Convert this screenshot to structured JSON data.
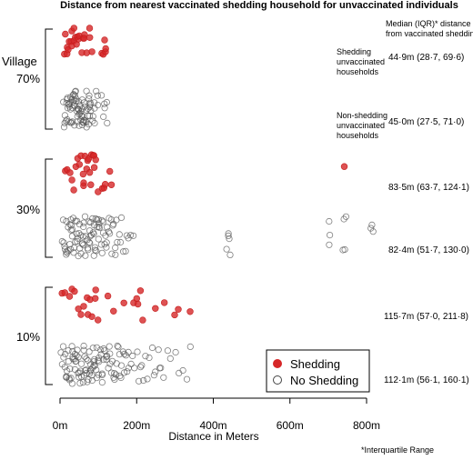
{
  "chart_data": {
    "type": "scatter",
    "title": "Distance from nearest vaccinated shedding household for unvaccinated individuals",
    "xlabel": "Distance in Meters",
    "xlim": [
      -10,
      830
    ],
    "xticks": [
      {
        "value": 0,
        "label": "0m"
      },
      {
        "value": 200,
        "label": "200m"
      },
      {
        "value": 400,
        "label": "400m"
      },
      {
        "value": 600,
        "label": "600m"
      },
      {
        "value": 800,
        "label": "800m"
      }
    ],
    "column_header": [
      "Median (IQR)* distance",
      "from vaccinated shedding"
    ],
    "footnote": "*Interquartile Range",
    "annotations": {
      "shedding": [
        "Shedding",
        "unvaccinated",
        "households"
      ],
      "non_shedding": [
        "Non-shedding",
        "unvaccinated",
        "households"
      ]
    },
    "group_axis_label": "Village",
    "legend": [
      {
        "label": "Shedding",
        "color": "#d62728",
        "filled": true
      },
      {
        "label": "No Shedding",
        "color": "#555555",
        "filled": false
      }
    ],
    "groups": [
      {
        "label": "70%",
        "shedding": {
          "median_iqr": "44·9m (28·7,  69·6)",
          "x": [
            12,
            15,
            18,
            20,
            22,
            25,
            28,
            30,
            32,
            35,
            38,
            40,
            42,
            45,
            48,
            50,
            55,
            60,
            62,
            65,
            70,
            75,
            78,
            85,
            110,
            112,
            115,
            118,
            120
          ]
        },
        "non_shedding": {
          "median_iqr": "45·0m (27·5,  71·0)",
          "x": [
            8,
            10,
            12,
            14,
            15,
            16,
            18,
            18,
            20,
            20,
            22,
            22,
            24,
            25,
            25,
            26,
            28,
            28,
            30,
            30,
            30,
            32,
            32,
            34,
            35,
            35,
            36,
            38,
            38,
            40,
            40,
            40,
            42,
            42,
            44,
            45,
            45,
            46,
            48,
            48,
            50,
            50,
            50,
            52,
            52,
            54,
            55,
            55,
            56,
            58,
            58,
            60,
            60,
            62,
            62,
            64,
            65,
            65,
            66,
            68,
            68,
            70,
            70,
            72,
            72,
            74,
            75,
            75,
            76,
            78,
            80,
            80,
            82,
            84,
            85,
            88,
            90,
            92,
            95,
            98,
            100,
            110,
            112,
            115,
            118,
            120,
            125
          ]
        }
      },
      {
        "label": "30%",
        "shedding": {
          "median_iqr": "83·5m (63·7, 124·1)",
          "x": [
            15,
            20,
            25,
            30,
            35,
            40,
            45,
            50,
            55,
            58,
            60,
            62,
            65,
            70,
            72,
            75,
            78,
            80,
            82,
            85,
            88,
            90,
            95,
            100,
            110,
            115,
            120,
            130,
            135,
            740
          ]
        },
        "non_shedding": {
          "median_iqr": "82·4m (51·7, 130·0)",
          "x": [
            5,
            8,
            10,
            12,
            14,
            15,
            16,
            18,
            20,
            20,
            22,
            24,
            25,
            26,
            28,
            30,
            30,
            32,
            34,
            35,
            36,
            38,
            40,
            40,
            42,
            44,
            45,
            46,
            48,
            50,
            50,
            52,
            54,
            55,
            56,
            58,
            60,
            60,
            62,
            64,
            65,
            66,
            68,
            70,
            70,
            72,
            74,
            75,
            76,
            78,
            80,
            80,
            82,
            84,
            85,
            86,
            88,
            90,
            90,
            92,
            94,
            95,
            96,
            98,
            100,
            100,
            102,
            104,
            105,
            108,
            110,
            110,
            112,
            115,
            118,
            120,
            120,
            122,
            125,
            128,
            130,
            130,
            132,
            135,
            138,
            140,
            142,
            145,
            148,
            150,
            155,
            158,
            160,
            165,
            170,
            175,
            180,
            185,
            190,
            435,
            437,
            440,
            440,
            442,
            700,
            702,
            705,
            740,
            742,
            745,
            748,
            810,
            812,
            815
          ]
        }
      },
      {
        "label": "10%",
        "shedding": {
          "median_iqr": "115·7m (57·0, 211·8)",
          "x": [
            5,
            15,
            25,
            30,
            40,
            50,
            55,
            60,
            70,
            75,
            80,
            85,
            90,
            95,
            100,
            125,
            140,
            165,
            190,
            200,
            205,
            210,
            215,
            250,
            270,
            300,
            310,
            340
          ]
        },
        "non_shedding": {
          "median_iqr": "112·1m (56·1, 160·1)",
          "x": [
            2,
            5,
            8,
            10,
            12,
            14,
            15,
            16,
            18,
            20,
            20,
            22,
            24,
            25,
            26,
            28,
            30,
            30,
            32,
            34,
            35,
            36,
            38,
            40,
            40,
            42,
            44,
            45,
            46,
            48,
            50,
            50,
            52,
            54,
            55,
            56,
            58,
            60,
            60,
            62,
            64,
            65,
            66,
            68,
            70,
            70,
            72,
            74,
            75,
            76,
            78,
            80,
            80,
            82,
            84,
            85,
            86,
            88,
            90,
            90,
            92,
            94,
            95,
            96,
            98,
            100,
            100,
            102,
            104,
            105,
            108,
            110,
            110,
            112,
            115,
            118,
            120,
            120,
            122,
            125,
            128,
            130,
            130,
            132,
            135,
            138,
            140,
            142,
            145,
            148,
            150,
            152,
            155,
            158,
            160,
            162,
            165,
            168,
            170,
            172,
            175,
            178,
            180,
            185,
            190,
            195,
            200,
            205,
            210,
            215,
            220,
            225,
            230,
            235,
            240,
            245,
            250,
            255,
            260,
            265,
            270,
            280,
            290,
            300,
            310,
            320,
            330,
            340
          ]
        }
      }
    ]
  }
}
